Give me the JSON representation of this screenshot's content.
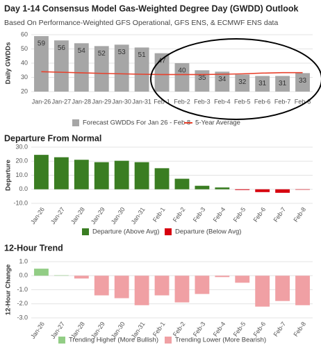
{
  "chart_data": [
    {
      "type": "bar",
      "title": "Day 1-14 Consensus Model Gas-Weighted Degree Day (GWDD) Outlook",
      "subtitle": "Based On Performance-Weighted GFS Operational, GFS ENS, & ECMWF ENS data",
      "y_label": "Daily GWDDs",
      "categories": [
        "Jan-26",
        "Jan-27",
        "Jan-28",
        "Jan-29",
        "Jan-30",
        "Jan-31",
        "Feb-1",
        "Feb-2",
        "Feb-3",
        "Feb-4",
        "Feb-5",
        "Feb-6",
        "Feb-7",
        "Feb-8"
      ],
      "series": [
        {
          "name": "Forecast GWDDs For  Jan 26 - Feb 8",
          "color": "#a6a6a6",
          "values": [
            59,
            56,
            54,
            52,
            53,
            51,
            47,
            40,
            35,
            34,
            32,
            31,
            31,
            33
          ]
        },
        {
          "name": "5-Year Average",
          "color": "#e8412c",
          "type": "line",
          "values": [
            34,
            33.6,
            33.2,
            32.8,
            32.5,
            32.2,
            32,
            32,
            32,
            32.2,
            32.5,
            33,
            33.3,
            33.3
          ]
        }
      ],
      "ylim": [
        20,
        60
      ],
      "yticks": [
        20,
        30,
        40,
        50,
        60
      ],
      "grid": true
    },
    {
      "type": "bar",
      "title": "Departure From Normal",
      "y_label": "Departure",
      "categories": [
        "Jan-26",
        "Jan-27",
        "Jan-28",
        "Jan-29",
        "Jan-30",
        "Jan-31",
        "Feb-1",
        "Feb-2",
        "Feb-3",
        "Feb-4",
        "Feb-5",
        "Feb-6",
        "Feb-7",
        "Feb-8"
      ],
      "series": [
        {
          "name": "Departure (Above Avg)",
          "color": "#3a7d22",
          "values": [
            24.5,
            22.8,
            21,
            19.3,
            20.3,
            19.3,
            15,
            7.5,
            2.5,
            1.3,
            null,
            null,
            null,
            null
          ]
        },
        {
          "name": "Departure (Below Avg)",
          "color": "#d7000f",
          "values": [
            null,
            null,
            null,
            null,
            null,
            null,
            null,
            null,
            null,
            null,
            -0.5,
            -2,
            -2.5,
            -0.3
          ]
        }
      ],
      "ylim": [
        -10,
        30
      ],
      "yticks": [
        {
          "value": -10,
          "label": "-10.0"
        },
        {
          "value": 0,
          "label": "0.0"
        },
        {
          "value": 10,
          "label": "10.0"
        },
        {
          "value": 20,
          "label": "20.0"
        },
        {
          "value": 30,
          "label": "30.0"
        }
      ],
      "grid": true
    },
    {
      "type": "bar",
      "title": "12-Hour Trend",
      "y_label": "12-Hour Change",
      "categories": [
        "Jan-26",
        "Jan-27",
        "Jan-28",
        "Jan-29",
        "Jan-30",
        "Jan-31",
        "Feb-1",
        "Feb-2",
        "Feb-3",
        "Feb-4",
        "Feb-5",
        "Feb-6",
        "Feb-7",
        "Feb-8"
      ],
      "series": [
        {
          "name": "Trending Higher (More Bullish)",
          "color": "#92cd85",
          "values": [
            0.5,
            0.03,
            null,
            null,
            null,
            null,
            null,
            null,
            null,
            null,
            null,
            null,
            null,
            null
          ]
        },
        {
          "name": "Trending Lower (More Bearish)",
          "color": "#f0a0a4",
          "values": [
            null,
            null,
            -0.2,
            -1.4,
            -1.6,
            -2.1,
            -1.4,
            -1.9,
            -1.3,
            -0.1,
            -0.5,
            -2.2,
            -1.8,
            -2.1
          ]
        }
      ],
      "ylim": [
        -3,
        1
      ],
      "yticks": [
        {
          "value": -3,
          "label": "-3.0"
        },
        {
          "value": -2,
          "label": "-2.0"
        },
        {
          "value": -1,
          "label": "-1.0"
        },
        {
          "value": 0,
          "label": "0.0"
        },
        {
          "value": 1,
          "label": "1.0"
        }
      ],
      "grid": true
    }
  ]
}
